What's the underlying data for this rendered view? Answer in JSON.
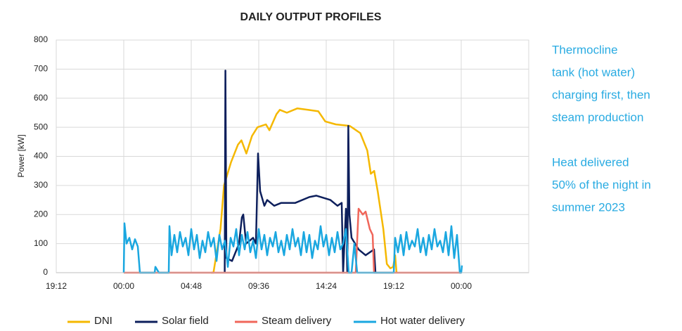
{
  "chart_data": {
    "type": "line",
    "title": "DAILY OUTPUT PROFILES",
    "y_label": "Power [kW]",
    "xlim": [
      0,
      33.6
    ],
    "xticks": [
      {
        "value": 0,
        "label": "19:12"
      },
      {
        "value": 4.8,
        "label": "00:00"
      },
      {
        "value": 9.6,
        "label": "04:48"
      },
      {
        "value": 14.4,
        "label": "09:36"
      },
      {
        "value": 19.2,
        "label": "14:24"
      },
      {
        "value": 24,
        "label": "19:12"
      },
      {
        "value": 28.8,
        "label": "00:00"
      }
    ],
    "ylim": [
      0,
      800
    ],
    "yticks": [
      0,
      100,
      200,
      300,
      400,
      500,
      600,
      700,
      800
    ],
    "grid": true,
    "series": [
      {
        "name": "DNI",
        "color": "#f5b800",
        "x": [
          11.0,
          11.18,
          11.68,
          11.93,
          12.43,
          12.92,
          13.17,
          13.52,
          13.92,
          14.31,
          14.91,
          15.16,
          15.66,
          15.9,
          16.4,
          17.15,
          17.9,
          18.64,
          19.13,
          19.88,
          20.87,
          21.62,
          22.12,
          22.37,
          22.61,
          22.86,
          23.26,
          23.51,
          23.76,
          23.96,
          24.1,
          24.2
        ],
        "values": [
          0,
          0,
          150,
          300,
          380,
          440,
          455,
          410,
          470,
          500,
          510,
          490,
          545,
          560,
          550,
          565,
          560,
          555,
          520,
          510,
          505,
          480,
          420,
          340,
          350,
          280,
          150,
          30,
          15,
          20,
          60,
          0
        ]
      },
      {
        "name": "Solar field",
        "color": "#0d1f5c",
        "x": [
          11.98,
          12.03,
          12.1,
          12.5,
          13.0,
          13.2,
          13.3,
          13.5,
          14.0,
          14.2,
          14.35,
          14.5,
          14.8,
          15.0,
          15.5,
          16.0,
          17.0,
          18.0,
          18.5,
          19.5,
          20.0,
          20.3,
          20.4,
          20.6,
          20.7,
          20.77,
          20.85,
          21.0,
          21.5,
          22.0,
          22.6,
          22.7
        ],
        "values": [
          0,
          695,
          50,
          40,
          100,
          190,
          200,
          100,
          120,
          100,
          410,
          280,
          230,
          250,
          230,
          240,
          240,
          260,
          265,
          250,
          230,
          240,
          0,
          220,
          0,
          505,
          200,
          120,
          80,
          60,
          80,
          0
        ]
      },
      {
        "name": "Steam delivery",
        "color": "#f0665a",
        "x": [
          4.8,
          21.3,
          21.5,
          21.8,
          22.0,
          22.3,
          22.5,
          22.6,
          28.8
        ],
        "values": [
          0,
          0,
          220,
          200,
          210,
          150,
          130,
          0,
          0
        ]
      },
      {
        "name": "Hot water delivery",
        "color": "#1aa7e0",
        "x": [
          4.8,
          4.85,
          5.0,
          5.2,
          5.4,
          5.6,
          5.8,
          5.95,
          7.0,
          7.05,
          7.3,
          8.0,
          8.05,
          8.2,
          8.4,
          8.6,
          8.8,
          9.0,
          9.2,
          9.4,
          9.6,
          9.8,
          10.0,
          10.2,
          10.4,
          10.6,
          10.8,
          11.0,
          11.2,
          11.4,
          11.6,
          11.8,
          12.0,
          12.2,
          12.4,
          12.6,
          12.8,
          13.0,
          13.2,
          13.4,
          13.6,
          13.8,
          14.0,
          14.2,
          14.4,
          14.6,
          14.8,
          15.0,
          15.2,
          15.4,
          15.6,
          15.8,
          16.0,
          16.2,
          16.4,
          16.6,
          16.8,
          17.0,
          17.2,
          17.4,
          17.6,
          17.8,
          18.0,
          18.2,
          18.4,
          18.6,
          18.8,
          19.0,
          19.2,
          19.4,
          19.6,
          19.8,
          20.0,
          20.2,
          20.4,
          20.6,
          20.8,
          21.0,
          21.2,
          21.4,
          24.0,
          24.1,
          24.3,
          24.5,
          24.7,
          24.9,
          25.1,
          25.3,
          25.5,
          25.7,
          25.9,
          26.1,
          26.3,
          26.5,
          26.7,
          26.9,
          27.1,
          27.3,
          27.5,
          27.7,
          27.9,
          28.1,
          28.3,
          28.5,
          28.7,
          28.8,
          28.85
        ],
        "values": [
          0,
          170,
          100,
          120,
          80,
          115,
          90,
          0,
          0,
          20,
          0,
          0,
          160,
          60,
          130,
          70,
          140,
          90,
          120,
          60,
          150,
          80,
          130,
          50,
          110,
          70,
          140,
          90,
          120,
          40,
          130,
          80,
          110,
          20,
          120,
          90,
          150,
          60,
          130,
          80,
          140,
          70,
          110,
          50,
          150,
          80,
          130,
          60,
          120,
          90,
          140,
          70,
          110,
          60,
          130,
          80,
          150,
          90,
          120,
          60,
          140,
          70,
          130,
          50,
          110,
          80,
          160,
          90,
          130,
          60,
          120,
          70,
          140,
          80,
          100,
          150,
          0,
          0,
          100,
          0,
          0,
          120,
          70,
          130,
          60,
          140,
          80,
          110,
          90,
          150,
          70,
          120,
          60,
          130,
          80,
          150,
          90,
          110,
          70,
          140,
          60,
          160,
          50,
          130,
          0,
          0,
          25
        ]
      }
    ],
    "annotations": [
      [
        "Thermocline",
        "tank (hot water)",
        "charging first, then",
        "steam production"
      ],
      [
        "Heat delivered",
        "50% of the night in",
        "summer 2023"
      ]
    ]
  }
}
